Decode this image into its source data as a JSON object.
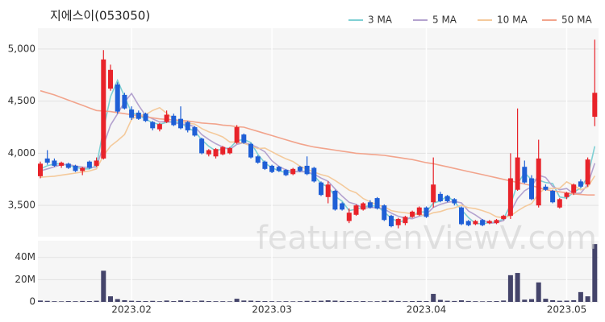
{
  "watermark": "feature.enViewV.com",
  "chart_data": [
    {
      "type": "candlestick",
      "title": "지에스이(053050)",
      "up_color": "#e8232a",
      "down_color": "#1f5fd6",
      "open": [
        3780,
        3950,
        3930,
        3880,
        3900,
        3880,
        3830,
        3920,
        3880,
        3950,
        4620,
        4660,
        4560,
        4420,
        4390,
        4380,
        4300,
        4230,
        4300,
        4360,
        4330,
        4300,
        4250,
        4140,
        3990,
        3970,
        3990,
        4000,
        4100,
        4180,
        4090,
        3970,
        3920,
        3880,
        3870,
        3840,
        3800,
        3870,
        3880,
        3860,
        3720,
        3580,
        3640,
        3520,
        3350,
        3410,
        3460,
        3530,
        3570,
        3500,
        3400,
        3310,
        3330,
        3390,
        3410,
        3480,
        3530,
        3610,
        3590,
        3560,
        3480,
        3350,
        3320,
        3360,
        3330,
        3330,
        3370,
        3400,
        3650,
        3870,
        3760,
        3500,
        3680,
        3640,
        3480,
        3580,
        3620,
        3730,
        3700,
        4350
      ],
      "high": [
        3920,
        4030,
        3950,
        3920,
        3910,
        3890,
        3870,
        3930,
        3960,
        4990,
        4850,
        4680,
        4580,
        4450,
        4410,
        4390,
        4310,
        4290,
        4410,
        4380,
        4450,
        4310,
        4260,
        4150,
        4040,
        4050,
        4070,
        4060,
        4270,
        4190,
        4100,
        3980,
        3930,
        3890,
        3880,
        3850,
        3860,
        3880,
        3970,
        3870,
        3730,
        3730,
        3650,
        3530,
        3470,
        3510,
        3530,
        3550,
        3580,
        3510,
        3410,
        3380,
        3400,
        3450,
        3490,
        3490,
        3960,
        3630,
        3600,
        3570,
        3490,
        3360,
        3360,
        3370,
        3360,
        3370,
        3410,
        4000,
        4430,
        3930,
        3790,
        4130,
        3700,
        3650,
        3570,
        3630,
        3710,
        3750,
        3960,
        5090
      ],
      "low": [
        3760,
        3890,
        3870,
        3860,
        3850,
        3820,
        3790,
        3850,
        3870,
        3940,
        4600,
        4380,
        4420,
        4320,
        4320,
        4300,
        4220,
        4210,
        4290,
        4260,
        4230,
        4200,
        4160,
        3990,
        3970,
        3950,
        3980,
        3990,
        4090,
        4090,
        3950,
        3900,
        3840,
        3810,
        3820,
        3780,
        3790,
        3820,
        3790,
        3720,
        3590,
        3520,
        3450,
        3450,
        3330,
        3400,
        3450,
        3470,
        3460,
        3350,
        3290,
        3280,
        3310,
        3380,
        3400,
        3380,
        3480,
        3530,
        3530,
        3500,
        3310,
        3300,
        3310,
        3300,
        3320,
        3320,
        3360,
        3370,
        3640,
        3710,
        3550,
        3480,
        3640,
        3520,
        3470,
        3560,
        3600,
        3670,
        3680,
        4260
      ],
      "close": [
        3900,
        3910,
        3880,
        3910,
        3860,
        3830,
        3860,
        3860,
        3930,
        4900,
        4800,
        4400,
        4430,
        4340,
        4330,
        4310,
        4240,
        4280,
        4370,
        4270,
        4240,
        4220,
        4170,
        4000,
        4030,
        4040,
        4060,
        4050,
        4250,
        4100,
        3960,
        3910,
        3850,
        3820,
        3830,
        3790,
        3850,
        3830,
        3800,
        3730,
        3600,
        3700,
        3460,
        3460,
        3430,
        3500,
        3520,
        3480,
        3470,
        3360,
        3300,
        3370,
        3390,
        3440,
        3480,
        3390,
        3700,
        3540,
        3540,
        3520,
        3320,
        3310,
        3350,
        3310,
        3350,
        3360,
        3400,
        3760,
        3960,
        3720,
        3560,
        3950,
        3650,
        3530,
        3560,
        3620,
        3700,
        3680,
        3940,
        4580
      ],
      "series": [
        {
          "name": "3 MA",
          "color": "#7fd0d4",
          "values": [
            3850,
            3880,
            3897,
            3900,
            3883,
            3867,
            3850,
            3850,
            3883,
            4230,
            4543,
            4700,
            4543,
            4390,
            4367,
            4327,
            4293,
            4277,
            4297,
            4307,
            4293,
            4243,
            4210,
            4130,
            4067,
            4023,
            4043,
            4050,
            4120,
            4133,
            4103,
            3990,
            3907,
            3860,
            3833,
            3813,
            3823,
            3823,
            3827,
            3787,
            3710,
            3677,
            3587,
            3540,
            3450,
            3463,
            3483,
            3500,
            3490,
            3437,
            3377,
            3343,
            3353,
            3400,
            3437,
            3437,
            3523,
            3543,
            3593,
            3533,
            3460,
            3383,
            3327,
            3323,
            3337,
            3340,
            3370,
            3507,
            3707,
            3813,
            3747,
            3743,
            3720,
            3710,
            3580,
            3570,
            3627,
            3667,
            3773,
            4067
          ]
        },
        {
          "name": "5 MA",
          "color": "#b4a3cf",
          "values": [
            3830,
            3850,
            3870,
            3890,
            3892,
            3878,
            3868,
            3864,
            3868,
            4076,
            4270,
            4378,
            4492,
            4574,
            4460,
            4362,
            4330,
            4300,
            4306,
            4294,
            4280,
            4276,
            4254,
            4180,
            4132,
            4092,
            4060,
            4036,
            4086,
            4100,
            4084,
            4054,
            4014,
            3928,
            3874,
            3840,
            3828,
            3824,
            3820,
            3800,
            3762,
            3732,
            3658,
            3590,
            3530,
            3510,
            3474,
            3478,
            3480,
            3466,
            3426,
            3396,
            3378,
            3372,
            3396,
            3414,
            3480,
            3510,
            3530,
            3538,
            3524,
            3446,
            3408,
            3362,
            3328,
            3336,
            3354,
            3436,
            3566,
            3640,
            3680,
            3790,
            3768,
            3682,
            3650,
            3662,
            3612,
            3618,
            3700,
            3904
          ]
        },
        {
          "name": "10 MA",
          "color": "#f4ca9c",
          "values": [
            3770,
            3775,
            3780,
            3790,
            3800,
            3810,
            3820,
            3830,
            3850,
            3977,
            4069,
            4121,
            4180,
            4325,
            4365,
            4370,
            4411,
            4437,
            4383,
            4328,
            4305,
            4288,
            4280,
            4237,
            4206,
            4184,
            4157,
            4108,
            4109,
            4096,
            4072,
            4045,
            4050,
            4014,
            3979,
            3947,
            3921,
            3876,
            3847,
            3820,
            3795,
            3778,
            3739,
            3695,
            3646,
            3621,
            3566,
            3534,
            3505,
            3488,
            3450,
            3437,
            3429,
            3419,
            3411,
            3405,
            3429,
            3441,
            3463,
            3476,
            3502,
            3478,
            3469,
            3450,
            3426,
            3391,
            3381,
            3399,
            3447,
            3488,
            3517,
            3613,
            3667,
            3661,
            3665,
            3726,
            3690,
            3650,
            3675,
            3783
          ]
        },
        {
          "name": "50 MA",
          "color": "#f2a48c",
          "values": [
            4600,
            4580,
            4560,
            4535,
            4510,
            4485,
            4460,
            4435,
            4410,
            4405,
            4400,
            4390,
            4380,
            4370,
            4360,
            4350,
            4340,
            4330,
            4325,
            4320,
            4315,
            4310,
            4300,
            4290,
            4285,
            4280,
            4270,
            4265,
            4255,
            4250,
            4230,
            4210,
            4190,
            4170,
            4150,
            4130,
            4110,
            4090,
            4075,
            4060,
            4050,
            4040,
            4030,
            4020,
            4010,
            4000,
            3995,
            3990,
            3985,
            3980,
            3970,
            3960,
            3950,
            3940,
            3925,
            3910,
            3900,
            3885,
            3870,
            3855,
            3840,
            3825,
            3810,
            3795,
            3780,
            3765,
            3750,
            3735,
            3720,
            3705,
            3690,
            3670,
            3650,
            3640,
            3630,
            3620,
            3610,
            3605,
            3600,
            3600
          ]
        }
      ],
      "ylim": [
        3200,
        5200
      ],
      "yticks": [
        {
          "value": 3500,
          "label": "3,500"
        },
        {
          "value": 4000,
          "label": "4,000"
        },
        {
          "value": 4500,
          "label": "4,500"
        },
        {
          "value": 5000,
          "label": "5,000"
        }
      ],
      "grid": true
    },
    {
      "type": "bar",
      "color": "#44446a",
      "categories": [
        null,
        null,
        null,
        null,
        null,
        null,
        null,
        null,
        null,
        null,
        null,
        null,
        null,
        "2023.02",
        null,
        null,
        null,
        null,
        null,
        null,
        null,
        null,
        null,
        null,
        null,
        null,
        null,
        null,
        null,
        null,
        null,
        null,
        null,
        "2023.03",
        null,
        null,
        null,
        null,
        null,
        null,
        null,
        null,
        null,
        null,
        null,
        null,
        null,
        null,
        null,
        null,
        null,
        null,
        null,
        null,
        null,
        "2023.04",
        null,
        null,
        null,
        null,
        null,
        null,
        null,
        null,
        null,
        null,
        null,
        null,
        null,
        null,
        null,
        null,
        null,
        null,
        null,
        "2023.05",
        null,
        null,
        null,
        null
      ],
      "values": [
        1200000,
        900000,
        600000,
        500000,
        700000,
        600000,
        800000,
        700000,
        1000000,
        28000000,
        5000000,
        2500000,
        1500000,
        1000000,
        800000,
        700000,
        900000,
        600000,
        1200000,
        700000,
        1300000,
        800000,
        600000,
        1100000,
        700000,
        600000,
        600000,
        500000,
        2800000,
        1200000,
        1100000,
        800000,
        700000,
        600000,
        500000,
        600000,
        500000,
        600000,
        900000,
        800000,
        1000000,
        1400000,
        1100000,
        800000,
        700000,
        600000,
        700000,
        500000,
        600000,
        900000,
        1100000,
        800000,
        600000,
        700000,
        800000,
        700000,
        7200000,
        1800000,
        1000000,
        800000,
        1400000,
        800000,
        600000,
        500000,
        600000,
        700000,
        1200000,
        24000000,
        26000000,
        2000000,
        2500000,
        17500000,
        2800000,
        1500000,
        1000000,
        1100000,
        1500000,
        8800000,
        5000000,
        52000000
      ],
      "ylim": [
        0,
        55000000
      ],
      "yticks": [
        0,
        {
          "value": 20000000,
          "label": "20M"
        },
        {
          "value": 40000000,
          "label": "40M"
        }
      ],
      "grid": true
    }
  ]
}
